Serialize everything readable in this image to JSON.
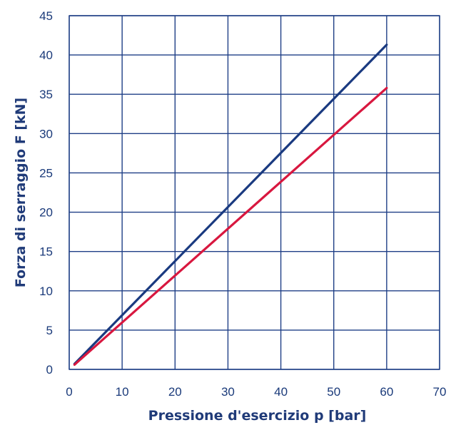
{
  "chart_data": {
    "type": "line",
    "title": "",
    "xlabel": "Pressione d'esercizio p [bar]",
    "ylabel": "Forza di serraggio F [kN]",
    "xlim": [
      0,
      70
    ],
    "ylim": [
      0,
      45
    ],
    "xticks": [
      "0",
      "10",
      "20",
      "30",
      "40",
      "50",
      "60",
      "70"
    ],
    "yticks": [
      "0",
      "5",
      "10",
      "15",
      "20",
      "25",
      "30",
      "35",
      "40",
      "45"
    ],
    "grid": true,
    "series": [
      {
        "color": "#1a3a80",
        "x": [
          1,
          60
        ],
        "y": [
          0.7,
          41.3
        ]
      },
      {
        "color": "#d8173f",
        "x": [
          1,
          60
        ],
        "y": [
          0.6,
          35.8
        ]
      }
    ]
  }
}
